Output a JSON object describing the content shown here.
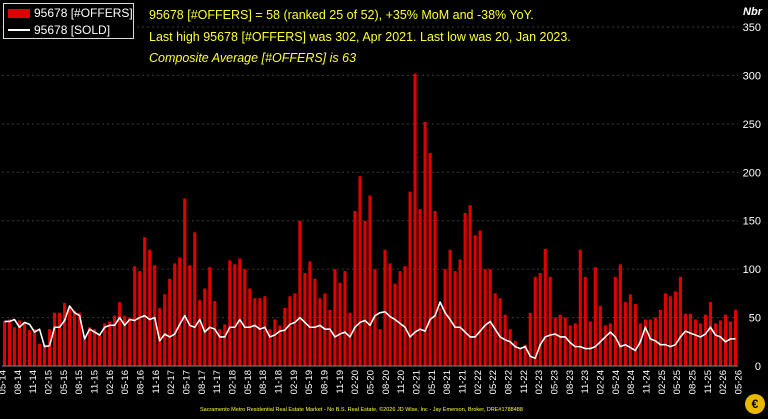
{
  "header": {
    "line1": "95678 [#OFFERS] = 58 (ranked 25 of 52), +35% MoM and -38% YoY.",
    "line2": "Last high 95678 [#OFFERS] was 302, Apr 2021. Last low was 20, Jan 2023.",
    "line3": "Composite Average [#OFFERS] is 63"
  },
  "legend": {
    "offers_label": "95678 [#OFFERS]",
    "sold_label": "95678 [SOLD]"
  },
  "footer": {
    "text": "Sacramento Metro Residential Real Estate Market - No B.S. Real Estate, ©2026 JD Wise, Inc - Jay Emerson, Broker, DRE#1788488"
  },
  "logo": {
    "glyph": "€"
  },
  "colors": {
    "bar": "#e00000",
    "line": "#ffffff",
    "grid": "#3a3a3a",
    "text": "#ffff33",
    "background": "#000000"
  },
  "chart_data": {
    "type": "bar",
    "ylabel": "Nbr",
    "ylim": [
      0,
      350
    ],
    "yticks": [
      0,
      50,
      100,
      150,
      200,
      250,
      300,
      350
    ],
    "xticks": [
      "05-14",
      "08-14",
      "11-14",
      "02-15",
      "05-15",
      "08-15",
      "11-15",
      "02-16",
      "05-16",
      "08-16",
      "11-16",
      "02-17",
      "05-17",
      "08-17",
      "11-17",
      "02-18",
      "05-18",
      "08-18",
      "11-18",
      "02-19",
      "05-19",
      "08-19",
      "11-19",
      "02-20",
      "05-20",
      "08-20",
      "11-20",
      "02-21",
      "05-21",
      "08-21",
      "11-21",
      "02-22",
      "05-22",
      "08-22",
      "11-22",
      "02-23",
      "05-23",
      "08-23",
      "11-23",
      "02-24",
      "05-24",
      "08-24",
      "11-24",
      "02-25",
      "05-25",
      "08-25",
      "11-25",
      "02-26",
      "05-26"
    ],
    "series": [
      {
        "name": "95678 [#OFFERS]",
        "kind": "bar",
        "values": [
          46,
          48,
          40,
          47,
          45,
          37,
          38,
          23,
          22,
          38,
          55,
          55,
          65,
          60,
          57,
          55,
          30,
          40,
          38,
          32,
          44,
          46,
          52,
          66,
          52,
          50,
          103,
          98,
          133,
          120,
          104,
          60,
          74,
          90,
          106,
          112,
          173,
          104,
          138,
          68,
          80,
          102,
          67,
          38,
          43,
          109,
          105,
          111,
          100,
          80,
          70,
          70,
          72,
          38,
          48,
          42,
          60,
          72,
          75,
          150,
          96,
          108,
          90,
          70,
          75,
          58,
          100,
          86,
          98,
          55,
          160,
          196,
          150,
          176,
          100,
          38,
          120,
          106,
          85,
          98,
          103,
          180,
          302,
          162,
          252,
          220,
          160,
          60,
          100,
          120,
          98,
          110,
          158,
          166,
          135,
          140,
          100,
          100,
          75,
          70,
          53,
          38,
          26,
          18,
          22,
          55,
          92,
          96,
          121,
          92,
          50,
          53,
          50,
          42,
          44,
          120,
          92,
          46,
          102,
          62,
          42,
          44,
          92,
          105,
          66,
          74,
          64,
          44,
          48,
          48,
          50,
          58,
          75,
          72,
          77,
          92,
          54,
          54,
          48,
          44,
          53,
          66,
          44,
          47,
          53,
          46,
          58
        ]
      },
      {
        "name": "95678 [SOLD]",
        "kind": "line",
        "values": [
          46,
          46,
          48,
          40,
          45,
          43,
          35,
          38,
          20,
          21,
          40,
          40,
          47,
          62,
          55,
          52,
          28,
          38,
          35,
          32,
          40,
          42,
          42,
          50,
          42,
          48,
          47,
          50,
          52,
          48,
          50,
          26,
          33,
          30,
          33,
          43,
          52,
          42,
          40,
          48,
          35,
          40,
          38,
          30,
          30,
          40,
          40,
          48,
          40,
          40,
          42,
          38,
          40,
          30,
          32,
          36,
          37,
          43,
          45,
          50,
          45,
          40,
          40,
          42,
          38,
          38,
          30,
          33,
          35,
          30,
          40,
          45,
          47,
          42,
          52,
          55,
          56,
          51,
          48,
          44,
          40,
          30,
          35,
          38,
          36,
          48,
          52,
          66,
          55,
          48,
          40,
          40,
          35,
          30,
          30,
          36,
          42,
          46,
          38,
          30,
          27,
          25,
          20,
          18,
          20,
          10,
          8,
          22,
          30,
          32,
          33,
          30,
          30,
          24,
          20,
          20,
          18,
          18,
          20,
          25,
          30,
          35,
          30,
          20,
          22,
          19,
          16,
          25,
          40,
          28,
          26,
          22,
          22,
          20,
          22,
          30,
          36,
          34,
          32,
          30,
          33,
          40,
          32,
          30,
          25,
          28,
          28
        ]
      }
    ]
  }
}
